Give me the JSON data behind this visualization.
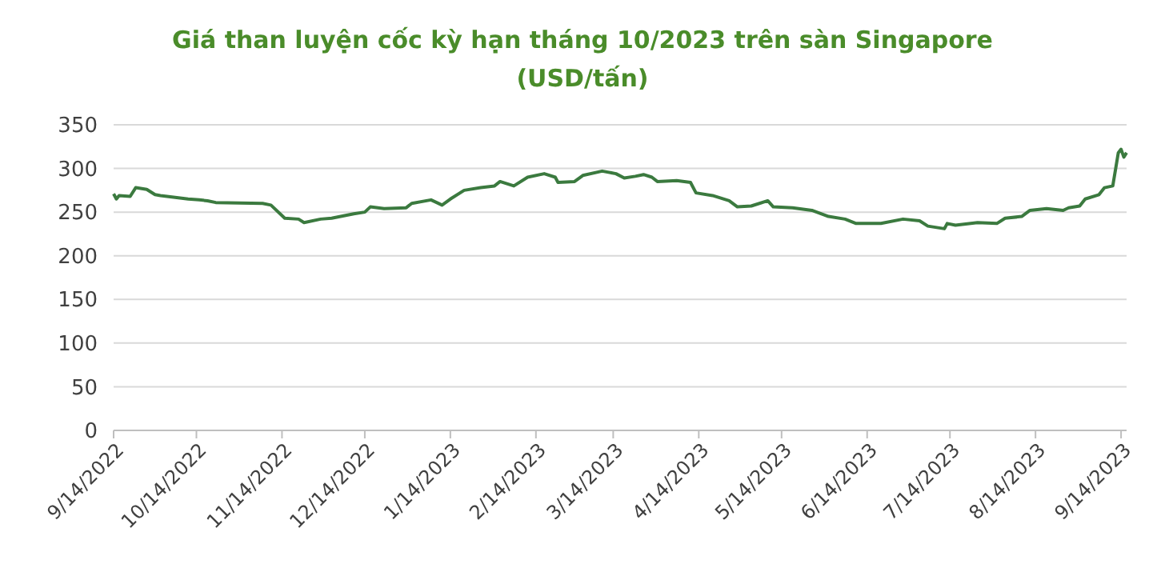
{
  "chart_data": {
    "type": "line",
    "title": "Giá than luyện cốc kỳ hạn tháng 10/2023 trên sàn Singapore",
    "subtitle": "(USD/tấn)",
    "x": [
      "2022-09-14",
      "2022-09-15",
      "2022-09-16",
      "2022-09-20",
      "2022-09-22",
      "2022-09-26",
      "2022-09-29",
      "2022-10-01",
      "2022-10-11",
      "2022-10-15",
      "2022-10-18",
      "2022-10-21",
      "2022-11-07",
      "2022-11-10",
      "2022-11-15",
      "2022-11-20",
      "2022-11-22",
      "2022-11-28",
      "2022-12-02",
      "2022-12-10",
      "2022-12-14",
      "2022-12-16",
      "2022-12-21",
      "2022-12-29",
      "2022-12-31",
      "2023-01-07",
      "2023-01-11",
      "2023-01-14",
      "2023-01-19",
      "2023-01-25",
      "2023-01-30",
      "2023-02-01",
      "2023-02-06",
      "2023-02-11",
      "2023-02-17",
      "2023-02-21",
      "2023-02-22",
      "2023-02-28",
      "2023-03-03",
      "2023-03-10",
      "2023-03-15",
      "2023-03-18",
      "2023-03-22",
      "2023-03-25",
      "2023-03-28",
      "2023-03-30",
      "2023-04-06",
      "2023-04-11",
      "2023-04-13",
      "2023-04-19",
      "2023-04-25",
      "2023-04-28",
      "2023-05-03",
      "2023-05-09",
      "2023-05-11",
      "2023-05-18",
      "2023-05-25",
      "2023-05-31",
      "2023-06-06",
      "2023-06-10",
      "2023-06-19",
      "2023-06-27",
      "2023-07-03",
      "2023-07-06",
      "2023-07-12",
      "2023-07-13",
      "2023-07-16",
      "2023-07-24",
      "2023-07-31",
      "2023-08-03",
      "2023-08-09",
      "2023-08-12",
      "2023-08-18",
      "2023-08-24",
      "2023-08-26",
      "2023-08-30",
      "2023-09-01",
      "2023-09-06",
      "2023-09-08",
      "2023-09-11",
      "2023-09-13",
      "2023-09-14",
      "2023-09-15",
      "2023-09-16"
    ],
    "series": [
      {
        "color": "#3b7a3f",
        "values": [
          271,
          265,
          269,
          268,
          278,
          276,
          270,
          269,
          265,
          264,
          263,
          261,
          260,
          258,
          243,
          242,
          238,
          242,
          243,
          248,
          250,
          256,
          254,
          255,
          260,
          264,
          258,
          265,
          275,
          278,
          280,
          285,
          280,
          290,
          294,
          290,
          284,
          285,
          292,
          297,
          294,
          289,
          291,
          293,
          290,
          285,
          286,
          284,
          272,
          269,
          263,
          256,
          257,
          263,
          256,
          255,
          252,
          245,
          242,
          237,
          237,
          242,
          240,
          234,
          231,
          237,
          235,
          238,
          237,
          243,
          245,
          252,
          254,
          252,
          255,
          257,
          265,
          270,
          278,
          280,
          318,
          322,
          313,
          318
        ]
      }
    ],
    "xlim": [
      "2022-09-14",
      "2023-09-16"
    ],
    "xticks": [
      {
        "value": "2022-09-14",
        "label": "9/14/2022"
      },
      {
        "value": "2022-10-14",
        "label": "10/14/2022"
      },
      {
        "value": "2022-11-14",
        "label": "11/14/2022"
      },
      {
        "value": "2022-12-14",
        "label": "12/14/2022"
      },
      {
        "value": "2023-01-14",
        "label": "1/14/2023"
      },
      {
        "value": "2023-02-14",
        "label": "2/14/2023"
      },
      {
        "value": "2023-03-14",
        "label": "3/14/2023"
      },
      {
        "value": "2023-04-14",
        "label": "4/14/2023"
      },
      {
        "value": "2023-05-14",
        "label": "5/14/2023"
      },
      {
        "value": "2023-06-14",
        "label": "6/14/2023"
      },
      {
        "value": "2023-07-14",
        "label": "7/14/2023"
      },
      {
        "value": "2023-08-14",
        "label": "8/14/2023"
      },
      {
        "value": "2023-09-14",
        "label": "9/14/2023"
      }
    ],
    "ylim": [
      0,
      350
    ],
    "yticks": [
      0,
      50,
      100,
      150,
      200,
      250,
      300,
      350
    ],
    "grid": "y",
    "marker": "none",
    "line_style": "solid"
  }
}
